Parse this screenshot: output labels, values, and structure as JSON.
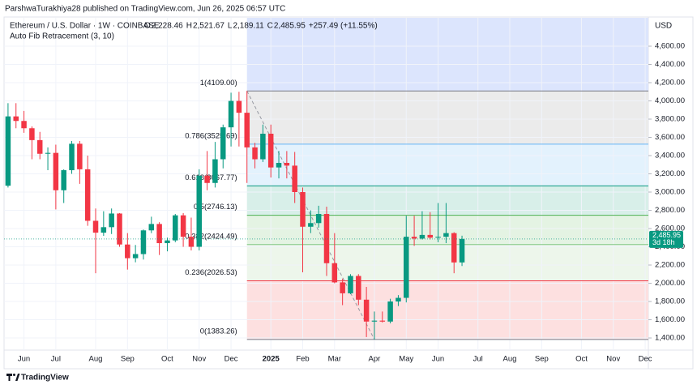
{
  "header": {
    "published": "ParshwaTurakhiya28 published on TradingView.com, Jun 26, 2025 06:57 UTC",
    "brand": "TradingView"
  },
  "chart_data": {
    "type": "candlestick",
    "symbol": "Ethereum / U.S. Dollar · 1W · COINBASE",
    "legend": [
      {
        "key": "O",
        "value": "2,228.46"
      },
      {
        "key": "H",
        "value": "2,521.67"
      },
      {
        "key": "L",
        "value": "2,189.11"
      },
      {
        "key": "C",
        "value": "2,485.95"
      }
    ],
    "change": "+257.49 (+11.55%)",
    "currency": "USD",
    "up_color": "#089981",
    "down_color": "#f23645",
    "open": [
      3070,
      3830,
      3780,
      3700,
      3570,
      3420,
      3430,
      3020,
      3240,
      3530,
      3250,
      2685,
      2555,
      2615,
      2765,
      2425,
      2275,
      2320,
      2580,
      2650,
      2440,
      2470,
      2745,
      2510,
      2400,
      3180,
      3100,
      3360,
      3710,
      4000,
      3870,
      3490,
      3360,
      3640,
      3270,
      3320,
      3290,
      3000,
      2620,
      2660,
      2760,
      2220,
      2010,
      1890,
      2080,
      1820,
      1580,
      1590,
      1580,
      1800,
      1840,
      2510,
      2490,
      2530,
      2500,
      2510,
      2550,
      2228.46
    ],
    "high": [
      3975,
      3975,
      3890,
      3720,
      3660,
      3490,
      3520,
      3250,
      3560,
      3560,
      3400,
      2820,
      2790,
      2820,
      2770,
      2550,
      2420,
      2590,
      2730,
      2670,
      2500,
      2760,
      2770,
      2720,
      3250,
      3450,
      3550,
      3740,
      4090,
      4100,
      4109,
      3540,
      3740,
      3740,
      3450,
      3450,
      3440,
      3050,
      2800,
      2850,
      2840,
      2550,
      2050,
      2100,
      2100,
      1960,
      1690,
      1690,
      1830,
      1870,
      2740,
      2740,
      2790,
      2780,
      2880,
      2880,
      2560,
      2521.67
    ],
    "low": [
      3050,
      3700,
      3650,
      3360,
      3360,
      3240,
      2810,
      2880,
      3200,
      3090,
      2630,
      2110,
      2520,
      2540,
      2400,
      2150,
      2230,
      2260,
      2550,
      2310,
      2350,
      2450,
      2400,
      2360,
      2360,
      3020,
      3050,
      3260,
      3500,
      3500,
      3100,
      3260,
      3330,
      3160,
      3150,
      3150,
      2880,
      2120,
      2550,
      2610,
      2080,
      2000,
      1760,
      1880,
      1760,
      1410,
      1383.26,
      1570,
      1560,
      1750,
      1790,
      2410,
      2480,
      2480,
      2450,
      2440,
      2110,
      2189.11
    ],
    "close": [
      3830,
      3780,
      3700,
      3570,
      3420,
      3430,
      3020,
      3240,
      3530,
      3250,
      2685,
      2555,
      2615,
      2765,
      2425,
      2275,
      2320,
      2580,
      2650,
      2440,
      2470,
      2745,
      2510,
      2400,
      3180,
      3100,
      3360,
      3710,
      4000,
      3870,
      3490,
      3360,
      3640,
      3270,
      3320,
      3290,
      3000,
      2620,
      2660,
      2760,
      2220,
      2010,
      1890,
      2080,
      1820,
      1580,
      1590,
      1580,
      1800,
      1840,
      2510,
      2490,
      2530,
      2500,
      2510,
      2550,
      2228.46,
      2485.95
    ],
    "xlim": [
      -0.5,
      80.4
    ],
    "xticks": [
      {
        "value": 2,
        "label": "Jun"
      },
      {
        "value": 6,
        "label": "Jul"
      },
      {
        "value": 11,
        "label": "Aug"
      },
      {
        "value": 15,
        "label": "Sep"
      },
      {
        "value": 20,
        "label": "Oct"
      },
      {
        "value": 24,
        "label": "Nov"
      },
      {
        "value": 28,
        "label": "Dec"
      },
      {
        "value": 33,
        "label": "2025"
      },
      {
        "value": 37,
        "label": "Feb"
      },
      {
        "value": 41,
        "label": "Mar"
      },
      {
        "value": 46,
        "label": "Apr"
      },
      {
        "value": 50,
        "label": "May"
      },
      {
        "value": 54,
        "label": "Jun"
      },
      {
        "value": 59,
        "label": "Jul"
      },
      {
        "value": 63,
        "label": "Aug"
      },
      {
        "value": 67,
        "label": "Sep"
      },
      {
        "value": 72,
        "label": "Oct"
      },
      {
        "value": 76,
        "label": "Nov"
      },
      {
        "value": 80,
        "label": "Dec"
      }
    ],
    "ylim": [
      1267,
      4911
    ],
    "yticks": [
      {
        "value": 1400,
        "label": "1,400.00"
      },
      {
        "value": 1600,
        "label": "1,600.00"
      },
      {
        "value": 1800,
        "label": "1,800.00"
      },
      {
        "value": 2000,
        "label": "2,000.00"
      },
      {
        "value": 2200,
        "label": "2,200.00"
      },
      {
        "value": 2400,
        "label": "2,400.00"
      },
      {
        "value": 2600,
        "label": "2,600.00"
      },
      {
        "value": 2800,
        "label": "2,800.00"
      },
      {
        "value": 3000,
        "label": "3,000.00"
      },
      {
        "value": 3200,
        "label": "3,200.00"
      },
      {
        "value": 3400,
        "label": "3,400.00"
      },
      {
        "value": 3600,
        "label": "3,600.00"
      },
      {
        "value": 3800,
        "label": "3,800.00"
      },
      {
        "value": 4000,
        "label": "4,000.00"
      },
      {
        "value": 4200,
        "label": "4,200.00"
      },
      {
        "value": 4400,
        "label": "4,400.00"
      },
      {
        "value": 4600,
        "label": "4,600.00"
      }
    ],
    "grid": true,
    "price_tag": {
      "label": "2,485.95",
      "countdown": "3d 18h"
    },
    "fib": {
      "name": "Auto Fib Retracement (3, 10)",
      "levels": [
        {
          "value": 4109,
          "label": "1(4109.00)",
          "color": "#787b86",
          "zone": "#ebebeb"
        },
        {
          "value": 3525.69,
          "label": "0.786(3525.69)",
          "color": "#64b5f6",
          "zone": "#e3f2fd"
        },
        {
          "value": 3067.77,
          "label": "0.618(3067.77)",
          "color": "#089981",
          "zone": "#d8efe9"
        },
        {
          "value": 2746.13,
          "label": "0.5(2746.13)",
          "color": "#4caf50",
          "zone": "#e4f3e3"
        },
        {
          "value": 2424.49,
          "label": "0.382(2424.49)",
          "color": "#81c784",
          "zone": "#edf6eb"
        },
        {
          "value": 2026.53,
          "label": "0.236(2026.53)",
          "color": "#f23645",
          "zone": "#fde0e0"
        },
        {
          "value": 1383.26,
          "label": "0(1383.26)",
          "color": "#787b86",
          "zone": null
        }
      ],
      "extension_zone": "#dce5fd"
    }
  }
}
